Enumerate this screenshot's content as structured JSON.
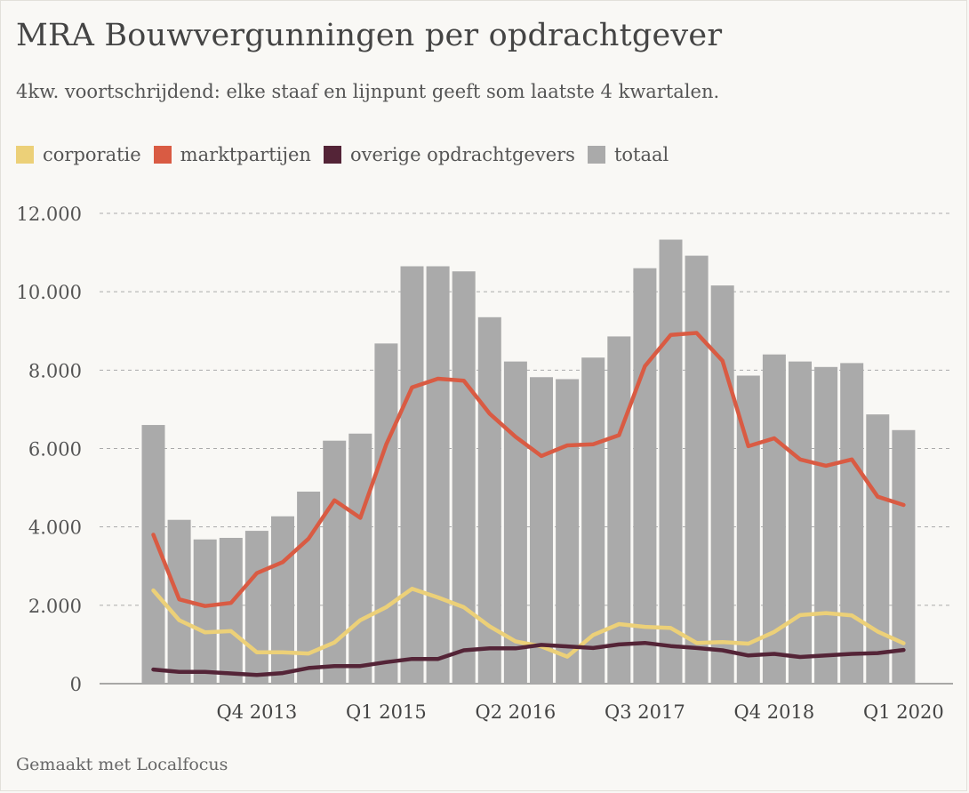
{
  "title": "MRA Bouwvergunningen per opdrachtgever",
  "subtitle": "4kw. voortschrijdend: elke staaf en lijnpunt geeft som laatste 4 kwartalen.",
  "credit": "Gemaakt met Localfocus",
  "legend": [
    {
      "label": "corporatie",
      "color": "#ecd078"
    },
    {
      "label": "marktpartijen",
      "color": "#d95b43"
    },
    {
      "label": "overige opdrachtgevers",
      "color": "#542437"
    },
    {
      "label": "totaal",
      "color": "#aaaaaa"
    }
  ],
  "chart_data": {
    "type": "bar",
    "title": "MRA Bouwvergunningen per opdrachtgever",
    "ylim": [
      0,
      12000
    ],
    "yticks": [
      0,
      2000,
      4000,
      6000,
      8000,
      10000,
      12000
    ],
    "ytick_labels": [
      "0",
      "2.000",
      "4.000",
      "6.000",
      "8.000",
      "10.000",
      "12.000"
    ],
    "xtick_labels": [
      {
        "index": 4,
        "label": "Q4 2013"
      },
      {
        "index": 9,
        "label": "Q1 2015"
      },
      {
        "index": 14,
        "label": "Q2 2016"
      },
      {
        "index": 19,
        "label": "Q3 2017"
      },
      {
        "index": 24,
        "label": "Q4 2018"
      },
      {
        "index": 29,
        "label": "Q1 2020"
      }
    ],
    "grid": true,
    "legend_position": "top-left",
    "series": [
      {
        "name": "totaal",
        "type": "bar",
        "color": "#aaaaaa",
        "values": [
          6600,
          4180,
          3680,
          3720,
          3900,
          4270,
          4900,
          6200,
          6380,
          8680,
          10650,
          10650,
          10520,
          9350,
          8220,
          7820,
          7770,
          8320,
          8860,
          10600,
          11330,
          10920,
          10160,
          7860,
          8400,
          8220,
          8080,
          8180,
          6870,
          6470
        ]
      },
      {
        "name": "marktpartijen",
        "type": "line",
        "color": "#d95b43",
        "values": [
          3800,
          2150,
          1980,
          2060,
          2820,
          3100,
          3700,
          4680,
          4230,
          6100,
          7560,
          7780,
          7730,
          6890,
          6300,
          5810,
          6080,
          6110,
          6340,
          8100,
          8900,
          8950,
          8240,
          6060,
          6260,
          5720,
          5560,
          5720,
          4770,
          4560
        ]
      },
      {
        "name": "corporatie",
        "type": "line",
        "color": "#ecd078",
        "values": [
          2380,
          1620,
          1310,
          1340,
          800,
          800,
          770,
          1050,
          1620,
          1950,
          2420,
          2200,
          1950,
          1460,
          1080,
          950,
          690,
          1240,
          1520,
          1450,
          1420,
          1040,
          1060,
          1020,
          1320,
          1750,
          1800,
          1740,
          1330,
          1030
        ]
      },
      {
        "name": "overige opdrachtgevers",
        "type": "line",
        "color": "#542437",
        "values": [
          360,
          300,
          300,
          260,
          220,
          270,
          400,
          450,
          450,
          550,
          630,
          630,
          850,
          900,
          900,
          990,
          950,
          910,
          1000,
          1040,
          960,
          910,
          850,
          720,
          760,
          680,
          720,
          760,
          780,
          860
        ]
      }
    ]
  }
}
